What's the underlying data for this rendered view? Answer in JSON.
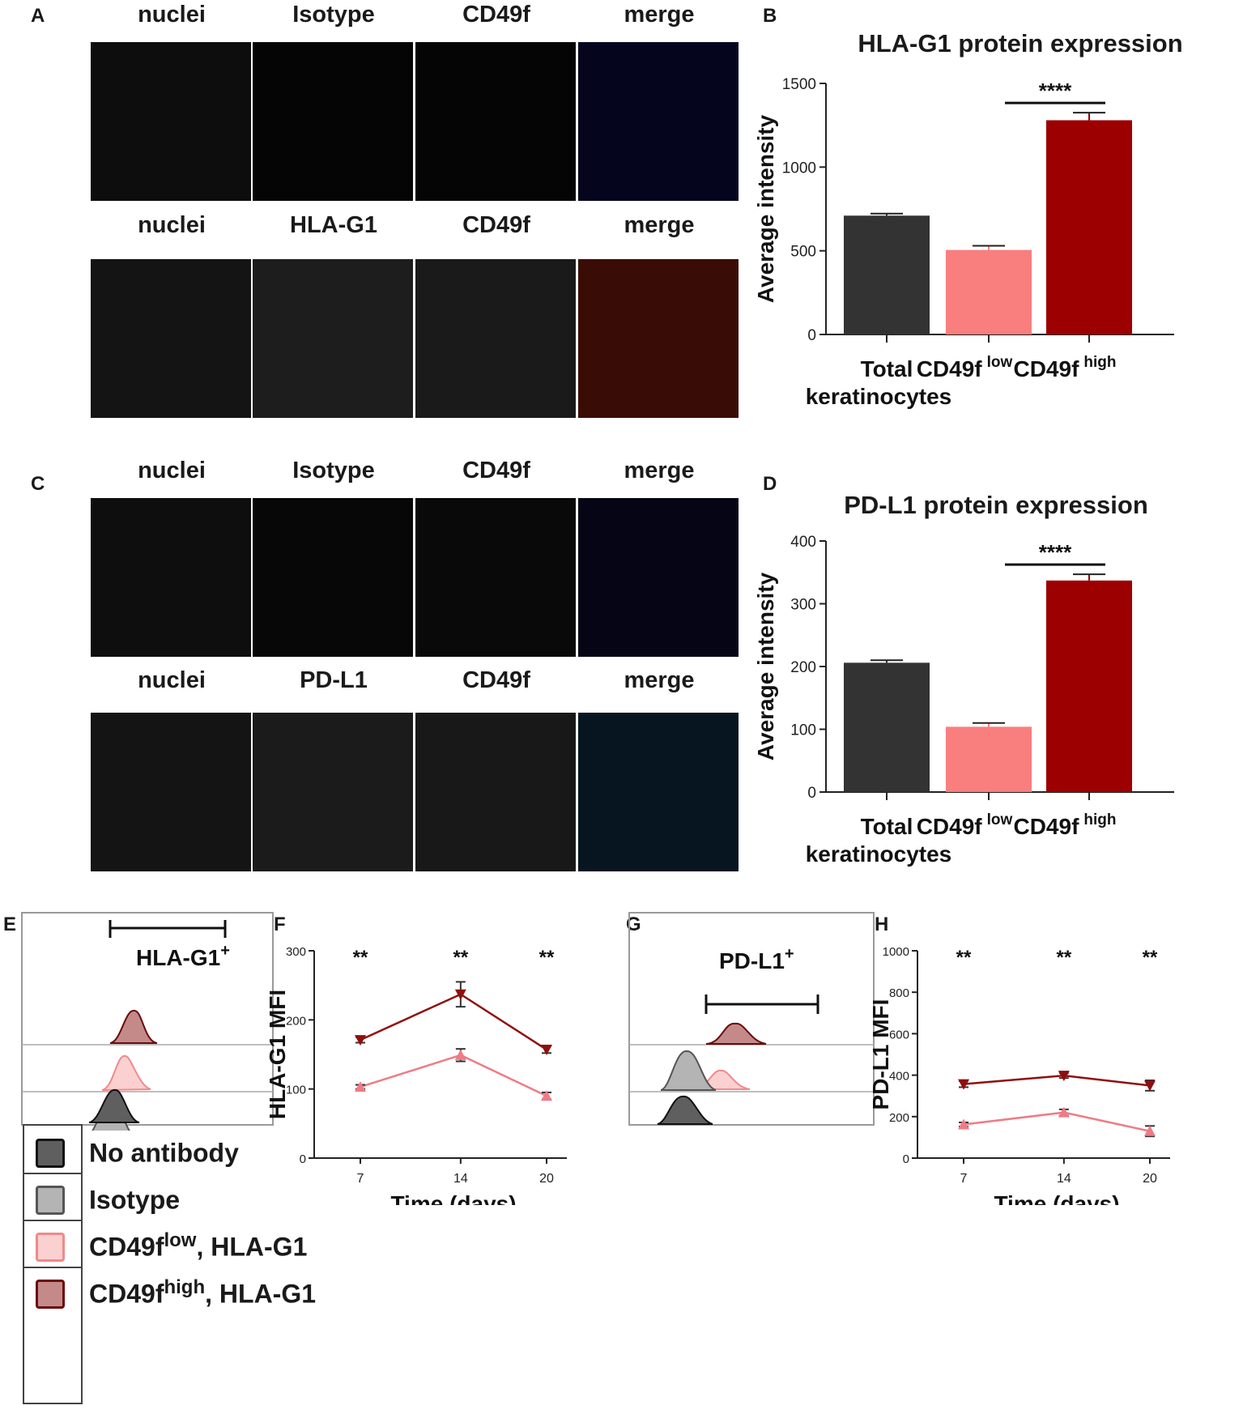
{
  "panels": {
    "A": "A",
    "B": "B",
    "C": "C",
    "D": "D",
    "E": "E",
    "F": "F",
    "G": "G",
    "H": "H"
  },
  "image_rows": [
    {
      "labels": [
        "nuclei",
        "Isotype",
        "CD49f",
        "merge"
      ]
    },
    {
      "labels": [
        "nuclei",
        "HLA-G1",
        "CD49f",
        "merge"
      ]
    },
    {
      "labels": [
        "nuclei",
        "Isotype",
        "CD49f",
        "merge"
      ]
    },
    {
      "labels": [
        "nuclei",
        "PD-L1",
        "CD49f",
        "merge"
      ]
    }
  ],
  "chart_data": [
    {
      "id": "B",
      "type": "bar",
      "title": "HLA-G1 protein expression",
      "ylabel": "Average intensity",
      "ylim": [
        0,
        1500
      ],
      "yticks": [
        "0",
        "500",
        "1000",
        "1500"
      ],
      "categories": [
        "Total keratinocytes",
        "CD49f low",
        "CD49f high"
      ],
      "category_lines": [
        [
          "Total",
          "keratinocytes"
        ],
        [
          "CD49f",
          "low"
        ],
        [
          "CD49f",
          "high"
        ]
      ],
      "values": [
        710,
        505,
        1280
      ],
      "errors": [
        12,
        25,
        45
      ],
      "colors": [
        "#333333",
        "#f97e7e",
        "#9c0000"
      ],
      "significance": "****"
    },
    {
      "id": "D",
      "type": "bar",
      "title": "PD-L1 protein expression",
      "ylabel": "Average intensity",
      "ylim": [
        0,
        400
      ],
      "yticks": [
        "0",
        "100",
        "200",
        "300",
        "400"
      ],
      "categories": [
        "Total keratinocytes",
        "CD49f low",
        "CD49f high"
      ],
      "category_lines": [
        [
          "Total",
          "keratinocytes"
        ],
        [
          "CD49f",
          "low"
        ],
        [
          "CD49f",
          "high"
        ]
      ],
      "values": [
        206,
        104,
        337
      ],
      "errors": [
        4,
        6,
        10
      ],
      "colors": [
        "#333333",
        "#f97e7e",
        "#9c0000"
      ],
      "significance": "****"
    },
    {
      "id": "F",
      "type": "line",
      "ylabel": "HLA-G1 MFI",
      "xlabel": "Time (days)",
      "x": [
        7,
        14,
        20
      ],
      "xticks": [
        "7",
        "14",
        "20"
      ],
      "ylim": [
        0,
        300
      ],
      "yticks": [
        "0",
        "100",
        "200",
        "300"
      ],
      "series": [
        {
          "values": [
            171,
            237,
            157
          ],
          "errors": [
            4,
            18,
            5
          ],
          "color": "#8f0f0f",
          "marker": "down-triangle"
        },
        {
          "values": [
            103,
            149,
            90
          ],
          "errors": [
            3,
            9,
            5
          ],
          "color": "#ef7b86",
          "marker": "up-triangle"
        }
      ],
      "significance": [
        "**",
        "**",
        "**"
      ]
    },
    {
      "id": "H",
      "type": "line",
      "ylabel": "PD-L1 MFI",
      "xlabel": "Time (days)",
      "x": [
        7,
        14,
        20
      ],
      "xticks": [
        "7",
        "14",
        "20"
      ],
      "ylim": [
        0,
        1000
      ],
      "yticks": [
        "0",
        "200",
        "400",
        "600",
        "800",
        "1000"
      ],
      "series": [
        {
          "values": [
            357,
            398,
            350
          ],
          "errors": [
            15,
            12,
            25
          ],
          "color": "#8f0f0f",
          "marker": "down-triangle"
        },
        {
          "values": [
            162,
            220,
            130
          ],
          "errors": [
            10,
            15,
            25
          ],
          "color": "#ef7b86",
          "marker": "up-triangle"
        }
      ],
      "significance": [
        "**",
        "**",
        "**"
      ]
    }
  ],
  "histograms": {
    "E": {
      "gate_label": "HLA-G1",
      "gate_sup": "+"
    },
    "G": {
      "gate_label": "PD-L1",
      "gate_sup": "+"
    }
  },
  "legend": [
    {
      "label": "No antibody",
      "sup": "",
      "suffix": "",
      "fill": "#5f5f5f",
      "stroke": "#111111"
    },
    {
      "label": "Isotype",
      "sup": "",
      "suffix": "",
      "fill": "#b4b4b4",
      "stroke": "#555555"
    },
    {
      "label": "CD49f",
      "sup": "low",
      "suffix": ", HLA-G1",
      "fill": "#fbd0d0",
      "stroke": "#f08a8a"
    },
    {
      "label": "CD49f",
      "sup": "high",
      "suffix": ", HLA-G1",
      "fill": "#c48a8a",
      "stroke": "#6a0a0a"
    }
  ]
}
